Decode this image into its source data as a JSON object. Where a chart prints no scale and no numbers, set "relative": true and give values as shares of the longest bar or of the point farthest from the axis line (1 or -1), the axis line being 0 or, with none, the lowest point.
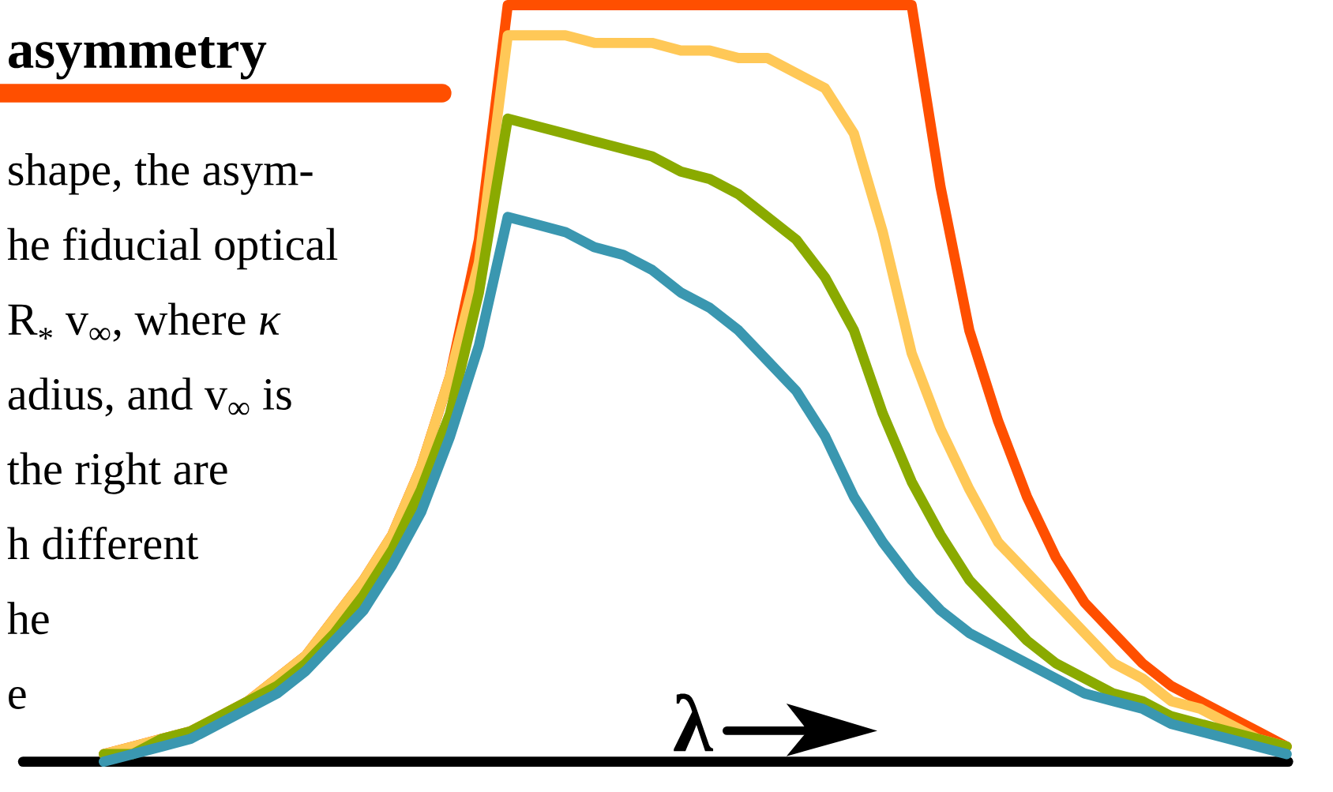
{
  "chart_data": {
    "type": "line",
    "relative": true,
    "title": "asymmetry",
    "xlabel": "λ",
    "annotations": [
      "shape, the asym-",
      "he fiducial optical",
      "R$_{*}$ v$_{∞}$, where *κ*",
      "adius, and v$_{∞}$ is",
      "the right are",
      "h different",
      "he",
      "e"
    ],
    "categories": [
      null,
      null,
      null,
      null,
      null,
      null,
      null,
      null,
      null,
      null,
      null,
      null,
      null,
      null,
      null,
      null,
      null,
      null,
      null,
      null,
      null,
      null,
      null,
      null,
      null,
      null,
      null,
      null,
      null,
      null,
      null,
      null,
      null,
      null,
      null,
      null,
      null,
      null,
      null,
      null,
      null,
      null
    ],
    "series": [
      {
        "color": "#ff4f00",
        "values": [
          0.01,
          0.02,
          0.03,
          0.04,
          0.06,
          0.08,
          0.11,
          0.14,
          0.19,
          0.24,
          0.3,
          0.39,
          0.51,
          0.69,
          1.0,
          1.0,
          1.0,
          1.0,
          1.0,
          1.0,
          1.0,
          1.0,
          1.0,
          1.0,
          1.0,
          1.0,
          1.0,
          1.0,
          1.0,
          0.76,
          0.57,
          0.45,
          0.35,
          0.27,
          0.21,
          0.17,
          0.13,
          0.1,
          0.08,
          0.06,
          0.04,
          0.02
        ]
      },
      {
        "color": "#ffc857",
        "values": [
          0.01,
          0.02,
          0.03,
          0.04,
          0.06,
          0.08,
          0.11,
          0.14,
          0.19,
          0.24,
          0.3,
          0.39,
          0.51,
          0.66,
          0.96,
          0.96,
          0.96,
          0.95,
          0.95,
          0.95,
          0.94,
          0.94,
          0.93,
          0.93,
          0.91,
          0.89,
          0.83,
          0.7,
          0.54,
          0.44,
          0.36,
          0.29,
          0.25,
          0.21,
          0.17,
          0.13,
          0.11,
          0.08,
          0.07,
          0.05,
          0.03,
          0.02
        ]
      },
      {
        "color": "#8aaa00",
        "values": [
          0.01,
          0.01,
          0.03,
          0.04,
          0.06,
          0.08,
          0.1,
          0.13,
          0.17,
          0.22,
          0.28,
          0.36,
          0.46,
          0.62,
          0.85,
          0.84,
          0.83,
          0.82,
          0.81,
          0.8,
          0.78,
          0.77,
          0.75,
          0.72,
          0.69,
          0.64,
          0.57,
          0.46,
          0.37,
          0.3,
          0.24,
          0.2,
          0.16,
          0.13,
          0.11,
          0.09,
          0.08,
          0.06,
          0.05,
          0.04,
          0.03,
          0.02
        ]
      },
      {
        "color": "#3a97b0",
        "values": [
          0.0,
          0.01,
          0.02,
          0.03,
          0.05,
          0.07,
          0.09,
          0.12,
          0.16,
          0.2,
          0.26,
          0.33,
          0.43,
          0.55,
          0.72,
          0.71,
          0.7,
          0.68,
          0.67,
          0.65,
          0.62,
          0.6,
          0.57,
          0.53,
          0.49,
          0.43,
          0.35,
          0.29,
          0.24,
          0.2,
          0.17,
          0.15,
          0.13,
          0.11,
          0.09,
          0.08,
          0.07,
          0.05,
          0.04,
          0.03,
          0.02,
          0.01
        ]
      }
    ]
  }
}
